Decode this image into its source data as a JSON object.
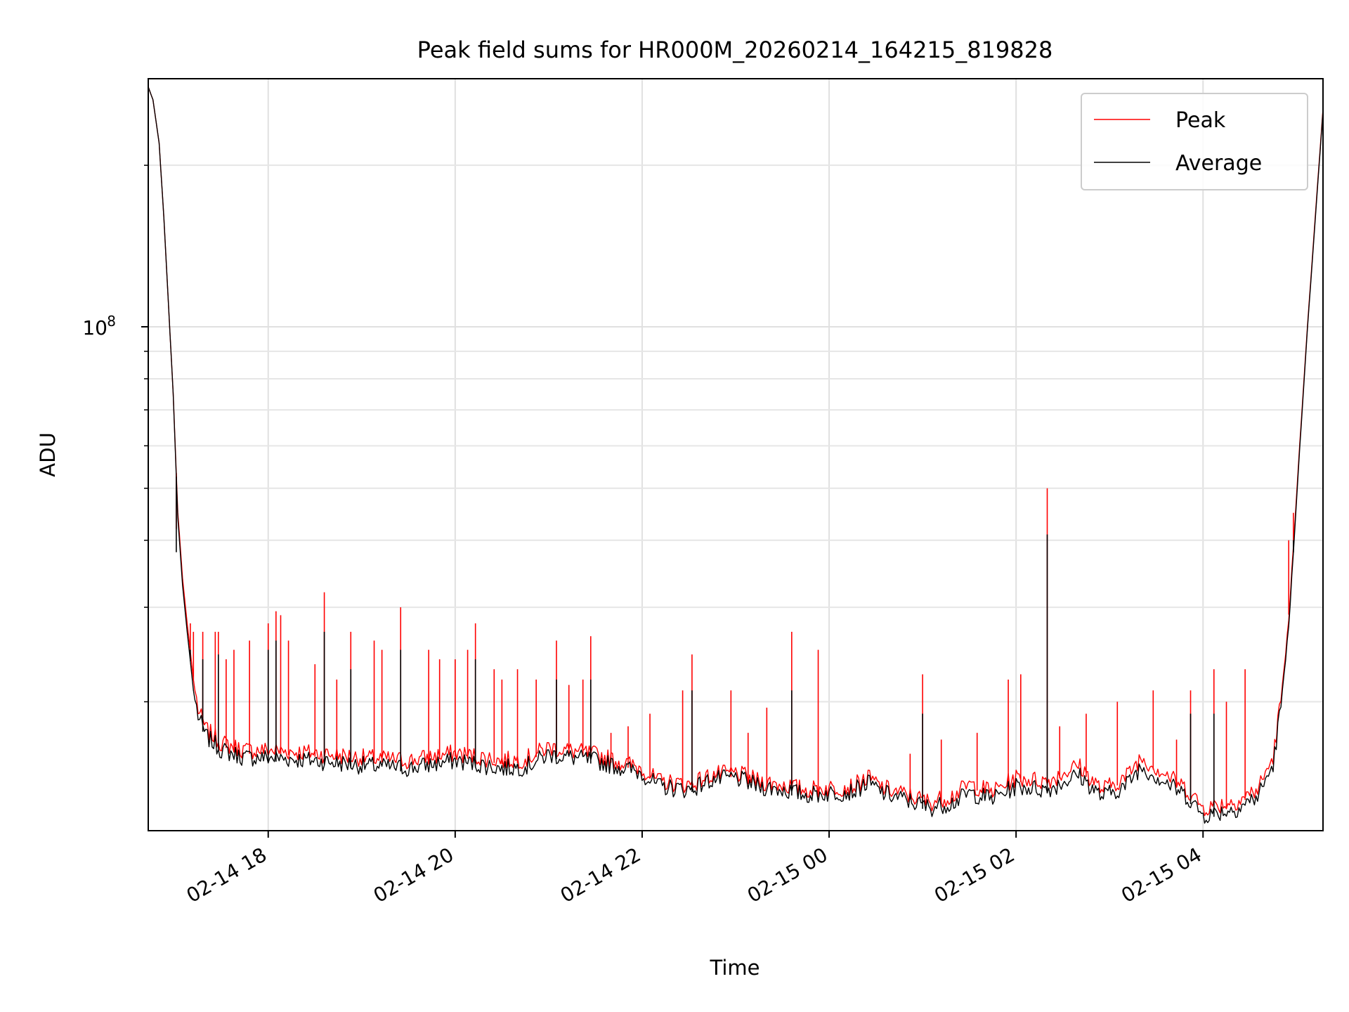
{
  "chart_data": {
    "type": "line",
    "title": "Peak field sums for HR000M_20260214_164215_819828",
    "xlabel": "Time",
    "ylabel": "ADU",
    "y_scale": "log",
    "ylim": [
      11500000,
      290000000
    ],
    "xlim": [
      "2026-02-14 16:43",
      "2026-02-15 05:17"
    ],
    "grid": true,
    "legend": {
      "position": "top-right"
    },
    "x_ticks": [
      {
        "at": "2026-02-14 18:00",
        "label": "02-14 18"
      },
      {
        "at": "2026-02-14 20:00",
        "label": "02-14 20"
      },
      {
        "at": "2026-02-14 22:00",
        "label": "02-14 22"
      },
      {
        "at": "2026-02-15 00:00",
        "label": "02-15 00"
      },
      {
        "at": "2026-02-15 02:00",
        "label": "02-15 02"
      },
      {
        "at": "2026-02-15 04:00",
        "label": "02-15 04"
      }
    ],
    "y_major_ticks": [
      {
        "value": 100000000,
        "label_base": "10",
        "label_exp": "8"
      }
    ],
    "y_minor_ticks": [
      20000000,
      30000000,
      40000000,
      50000000,
      60000000,
      70000000,
      80000000,
      90000000,
      200000000
    ],
    "series": [
      {
        "name": "Peak",
        "color": "#ff0000",
        "baseline": [
          [
            "2026-02-14 16:43",
            280000000
          ],
          [
            "2026-02-14 16:46",
            265000000
          ],
          [
            "2026-02-14 16:50",
            220000000
          ],
          [
            "2026-02-14 16:53",
            160000000
          ],
          [
            "2026-02-14 16:56",
            110000000
          ],
          [
            "2026-02-14 16:59",
            75000000
          ],
          [
            "2026-02-14 17:02",
            45000000
          ],
          [
            "2026-02-14 17:05",
            34000000
          ],
          [
            "2026-02-14 17:08",
            28000000
          ],
          [
            "2026-02-14 17:12",
            22000000
          ],
          [
            "2026-02-14 17:15",
            19000000
          ],
          [
            "2026-02-14 17:20",
            17500000
          ],
          [
            "2026-02-14 17:30",
            16500000
          ],
          [
            "2026-02-14 17:45",
            16000000
          ],
          [
            "2026-02-14 18:00",
            16000000
          ],
          [
            "2026-02-14 18:30",
            15800000
          ],
          [
            "2026-02-14 19:00",
            15500000
          ],
          [
            "2026-02-14 19:30",
            15300000
          ],
          [
            "2026-02-14 20:00",
            15800000
          ],
          [
            "2026-02-14 20:30",
            15300000
          ],
          [
            "2026-02-14 20:45",
            15400000
          ],
          [
            "2026-02-14 21:00",
            16200000
          ],
          [
            "2026-02-14 21:30",
            15700000
          ],
          [
            "2026-02-14 22:00",
            14800000
          ],
          [
            "2026-02-14 22:10",
            14000000
          ],
          [
            "2026-02-14 22:30",
            13800000
          ],
          [
            "2026-02-14 22:45",
            14400000
          ],
          [
            "2026-02-14 23:00",
            14500000
          ],
          [
            "2026-02-14 23:15",
            14000000
          ],
          [
            "2026-02-14 23:30",
            13800000
          ],
          [
            "2026-02-14 23:45",
            13500000
          ],
          [
            "2026-02-15 00:00",
            13600000
          ],
          [
            "2026-02-15 00:15",
            13700000
          ],
          [
            "2026-02-15 00:25",
            14200000
          ],
          [
            "2026-02-15 00:35",
            13600000
          ],
          [
            "2026-02-15 00:50",
            13200000
          ],
          [
            "2026-02-15 01:05",
            12800000
          ],
          [
            "2026-02-15 01:20",
            13200000
          ],
          [
            "2026-02-15 01:30",
            13800000
          ],
          [
            "2026-02-15 01:45",
            13400000
          ],
          [
            "2026-02-15 02:00",
            14200000
          ],
          [
            "2026-02-15 02:20",
            14000000
          ],
          [
            "2026-02-15 02:40",
            15000000
          ],
          [
            "2026-02-15 02:55",
            13500000
          ],
          [
            "2026-02-15 03:10",
            14200000
          ],
          [
            "2026-02-15 03:20",
            15500000
          ],
          [
            "2026-02-15 03:35",
            14500000
          ],
          [
            "2026-02-15 03:50",
            13500000
          ],
          [
            "2026-02-15 04:00",
            12500000
          ],
          [
            "2026-02-15 04:20",
            12800000
          ],
          [
            "2026-02-15 04:35",
            13500000
          ],
          [
            "2026-02-15 04:45",
            15500000
          ],
          [
            "2026-02-15 04:52",
            22000000
          ],
          [
            "2026-02-15 04:57",
            35000000
          ],
          [
            "2026-02-15 05:02",
            60000000
          ],
          [
            "2026-02-15 05:07",
            100000000
          ],
          [
            "2026-02-15 05:12",
            160000000
          ],
          [
            "2026-02-15 05:17",
            255000000
          ]
        ],
        "spikes": [
          [
            "2026-02-14 17:01",
            42000000
          ],
          [
            "2026-02-14 17:03",
            41000000
          ],
          [
            "2026-02-14 17:10",
            28000000
          ],
          [
            "2026-02-14 17:12",
            27000000
          ],
          [
            "2026-02-14 17:18",
            27000000
          ],
          [
            "2026-02-14 17:26",
            27000000
          ],
          [
            "2026-02-14 17:28",
            27000000
          ],
          [
            "2026-02-14 17:33",
            24000000
          ],
          [
            "2026-02-14 17:38",
            25000000
          ],
          [
            "2026-02-14 17:48",
            26000000
          ],
          [
            "2026-02-14 18:00",
            28000000
          ],
          [
            "2026-02-14 18:05",
            29500000
          ],
          [
            "2026-02-14 18:08",
            29000000
          ],
          [
            "2026-02-14 18:13",
            26000000
          ],
          [
            "2026-02-14 18:30",
            23500000
          ],
          [
            "2026-02-14 18:36",
            32000000
          ],
          [
            "2026-02-14 18:44",
            22000000
          ],
          [
            "2026-02-14 18:53",
            27000000
          ],
          [
            "2026-02-14 19:08",
            26000000
          ],
          [
            "2026-02-14 19:13",
            25000000
          ],
          [
            "2026-02-14 19:25",
            30000000
          ],
          [
            "2026-02-14 19:43",
            25000000
          ],
          [
            "2026-02-14 19:50",
            24000000
          ],
          [
            "2026-02-14 20:00",
            24000000
          ],
          [
            "2026-02-14 20:08",
            25000000
          ],
          [
            "2026-02-14 20:13",
            28000000
          ],
          [
            "2026-02-14 20:25",
            23000000
          ],
          [
            "2026-02-14 20:30",
            22000000
          ],
          [
            "2026-02-14 20:40",
            23000000
          ],
          [
            "2026-02-14 20:52",
            22000000
          ],
          [
            "2026-02-14 21:05",
            26000000
          ],
          [
            "2026-02-14 21:13",
            21500000
          ],
          [
            "2026-02-14 21:22",
            22000000
          ],
          [
            "2026-02-14 21:27",
            26500000
          ],
          [
            "2026-02-14 21:40",
            17500000
          ],
          [
            "2026-02-14 21:51",
            18000000
          ],
          [
            "2026-02-14 22:05",
            19000000
          ],
          [
            "2026-02-14 22:26",
            21000000
          ],
          [
            "2026-02-14 22:32",
            24500000
          ],
          [
            "2026-02-14 22:57",
            21000000
          ],
          [
            "2026-02-14 23:08",
            17500000
          ],
          [
            "2026-02-14 23:20",
            19500000
          ],
          [
            "2026-02-14 23:36",
            27000000
          ],
          [
            "2026-02-14 23:53",
            25000000
          ],
          [
            "2026-02-15 00:52",
            16000000
          ],
          [
            "2026-02-15 01:00",
            22500000
          ],
          [
            "2026-02-15 01:12",
            17000000
          ],
          [
            "2026-02-15 01:35",
            17500000
          ],
          [
            "2026-02-15 01:55",
            22000000
          ],
          [
            "2026-02-15 02:03",
            22500000
          ],
          [
            "2026-02-15 02:20",
            50000000
          ],
          [
            "2026-02-15 02:28",
            18000000
          ],
          [
            "2026-02-15 02:45",
            19000000
          ],
          [
            "2026-02-15 03:05",
            20000000
          ],
          [
            "2026-02-15 03:28",
            21000000
          ],
          [
            "2026-02-15 03:43",
            17000000
          ],
          [
            "2026-02-15 03:52",
            21000000
          ],
          [
            "2026-02-15 04:07",
            23000000
          ],
          [
            "2026-02-15 04:15",
            20000000
          ],
          [
            "2026-02-15 04:27",
            23000000
          ],
          [
            "2026-02-15 04:55",
            40000000
          ],
          [
            "2026-02-15 04:58",
            45000000
          ]
        ]
      },
      {
        "name": "Average",
        "color": "#000000",
        "baseline": [
          [
            "2026-02-14 16:43",
            280000000
          ],
          [
            "2026-02-14 16:46",
            265000000
          ],
          [
            "2026-02-14 16:50",
            220000000
          ],
          [
            "2026-02-14 16:53",
            160000000
          ],
          [
            "2026-02-14 16:56",
            110000000
          ],
          [
            "2026-02-14 16:59",
            75000000
          ],
          [
            "2026-02-14 17:02",
            44000000
          ],
          [
            "2026-02-14 17:05",
            33000000
          ],
          [
            "2026-02-14 17:08",
            27000000
          ],
          [
            "2026-02-14 17:12",
            21000000
          ],
          [
            "2026-02-14 17:15",
            18500000
          ],
          [
            "2026-02-14 17:20",
            17000000
          ],
          [
            "2026-02-14 17:30",
            16000000
          ],
          [
            "2026-02-14 17:45",
            15500000
          ],
          [
            "2026-02-14 18:00",
            15500000
          ],
          [
            "2026-02-14 18:30",
            15300000
          ],
          [
            "2026-02-14 19:00",
            15000000
          ],
          [
            "2026-02-14 19:30",
            14800000
          ],
          [
            "2026-02-14 20:00",
            15300000
          ],
          [
            "2026-02-14 20:30",
            14800000
          ],
          [
            "2026-02-14 20:45",
            14900000
          ],
          [
            "2026-02-14 21:00",
            15700000
          ],
          [
            "2026-02-14 21:30",
            15300000
          ],
          [
            "2026-02-14 22:00",
            14500000
          ],
          [
            "2026-02-14 22:10",
            13700000
          ],
          [
            "2026-02-14 22:30",
            13500000
          ],
          [
            "2026-02-14 22:45",
            14100000
          ],
          [
            "2026-02-14 23:00",
            14200000
          ],
          [
            "2026-02-14 23:15",
            13700000
          ],
          [
            "2026-02-14 23:30",
            13500000
          ],
          [
            "2026-02-14 23:45",
            13200000
          ],
          [
            "2026-02-15 00:00",
            13300000
          ],
          [
            "2026-02-15 00:15",
            13400000
          ],
          [
            "2026-02-15 00:25",
            13900000
          ],
          [
            "2026-02-15 00:35",
            13300000
          ],
          [
            "2026-02-15 00:50",
            12900000
          ],
          [
            "2026-02-15 01:05",
            12500000
          ],
          [
            "2026-02-15 01:20",
            12800000
          ],
          [
            "2026-02-15 01:30",
            13300000
          ],
          [
            "2026-02-15 01:45",
            13000000
          ],
          [
            "2026-02-15 02:00",
            13700000
          ],
          [
            "2026-02-15 02:20",
            13500000
          ],
          [
            "2026-02-15 02:40",
            14400000
          ],
          [
            "2026-02-15 02:55",
            13100000
          ],
          [
            "2026-02-15 03:10",
            13700000
          ],
          [
            "2026-02-15 03:20",
            14900000
          ],
          [
            "2026-02-15 03:35",
            14000000
          ],
          [
            "2026-02-15 03:50",
            13100000
          ],
          [
            "2026-02-15 04:00",
            12100000
          ],
          [
            "2026-02-15 04:20",
            12400000
          ],
          [
            "2026-02-15 04:35",
            13100000
          ],
          [
            "2026-02-15 04:45",
            15000000
          ],
          [
            "2026-02-15 04:52",
            21500000
          ],
          [
            "2026-02-15 04:57",
            34000000
          ],
          [
            "2026-02-15 05:02",
            59000000
          ],
          [
            "2026-02-15 05:07",
            99000000
          ],
          [
            "2026-02-15 05:12",
            158000000
          ],
          [
            "2026-02-15 05:17",
            253000000
          ]
        ],
        "spikes": [
          [
            "2026-02-14 17:01",
            38000000
          ],
          [
            "2026-02-14 17:10",
            25000000
          ],
          [
            "2026-02-14 17:18",
            24000000
          ],
          [
            "2026-02-14 17:28",
            24500000
          ],
          [
            "2026-02-14 18:00",
            25000000
          ],
          [
            "2026-02-14 18:05",
            26000000
          ],
          [
            "2026-02-14 18:36",
            27000000
          ],
          [
            "2026-02-14 18:53",
            23000000
          ],
          [
            "2026-02-14 19:25",
            25000000
          ],
          [
            "2026-02-14 20:13",
            24000000
          ],
          [
            "2026-02-14 21:05",
            22000000
          ],
          [
            "2026-02-14 21:27",
            22000000
          ],
          [
            "2026-02-14 22:32",
            21000000
          ],
          [
            "2026-02-14 23:36",
            21000000
          ],
          [
            "2026-02-15 01:00",
            19000000
          ],
          [
            "2026-02-15 02:20",
            41000000
          ],
          [
            "2026-02-15 03:52",
            19000000
          ],
          [
            "2026-02-15 04:07",
            19000000
          ],
          [
            "2026-02-15 04:58",
            40000000
          ]
        ]
      }
    ]
  }
}
